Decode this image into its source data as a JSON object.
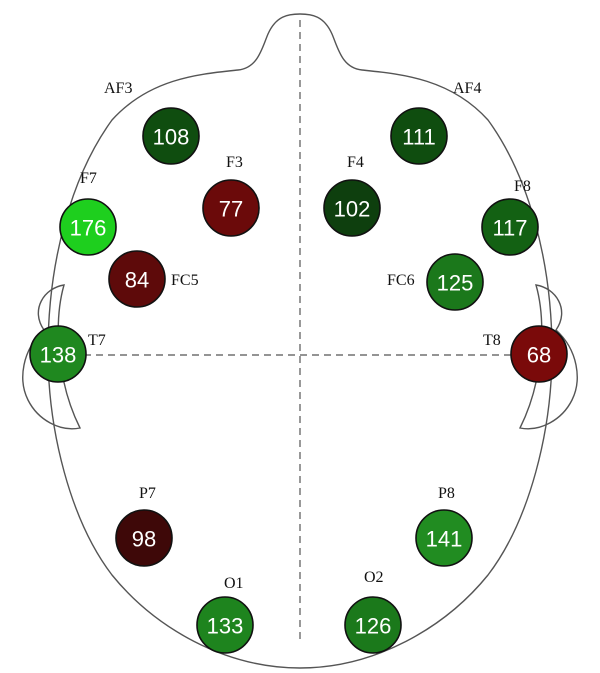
{
  "diagram": {
    "type": "eeg-electrode-head-map",
    "electrodes": [
      {
        "id": "AF3",
        "label": "AF3",
        "value": "108",
        "color": "#0f4d0f"
      },
      {
        "id": "AF4",
        "label": "AF4",
        "value": "111",
        "color": "#0f4d0f"
      },
      {
        "id": "F3",
        "label": "F3",
        "value": "77",
        "color": "#6b0a0a"
      },
      {
        "id": "F4",
        "label": "F4",
        "value": "102",
        "color": "#0e3f0e"
      },
      {
        "id": "F7",
        "label": "F7",
        "value": "176",
        "color": "#1ecf1e"
      },
      {
        "id": "F8",
        "label": "F8",
        "value": "117",
        "color": "#136113"
      },
      {
        "id": "FC5",
        "label": "FC5",
        "value": "84",
        "color": "#5e0a0a"
      },
      {
        "id": "FC6",
        "label": "FC6",
        "value": "125",
        "color": "#1b781b"
      },
      {
        "id": "T7",
        "label": "T7",
        "value": "138",
        "color": "#1f881f"
      },
      {
        "id": "T8",
        "label": "T8",
        "value": "68",
        "color": "#7a0a0a"
      },
      {
        "id": "P7",
        "label": "P7",
        "value": "98",
        "color": "#3e0808"
      },
      {
        "id": "P8",
        "label": "P8",
        "value": "141",
        "color": "#218c21"
      },
      {
        "id": "O1",
        "label": "O1",
        "value": "133",
        "color": "#1e841e"
      },
      {
        "id": "O2",
        "label": "O2",
        "value": "126",
        "color": "#1b791b"
      }
    ]
  }
}
